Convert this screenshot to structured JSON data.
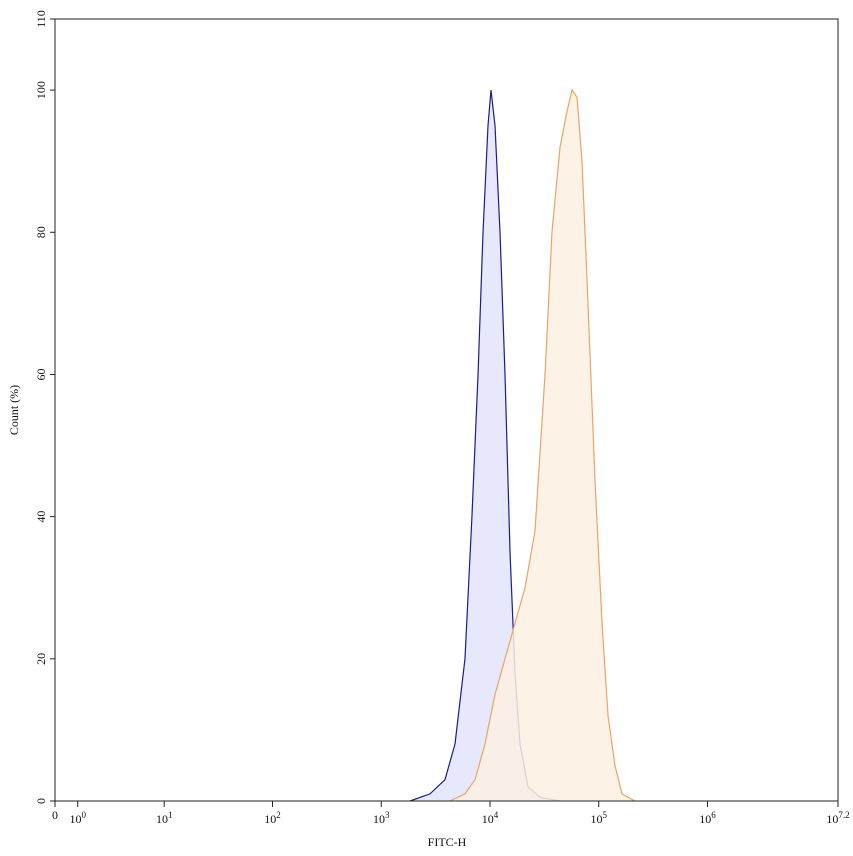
{
  "chart_data": {
    "type": "histogram-overlay",
    "x_label": "FITC-H",
    "y_label": "Count (%)",
    "xscale": "biexponential",
    "xlim": [
      0,
      15848932
    ],
    "xticks": [
      0,
      {
        "value": 1,
        "label": "10",
        "exponent": "0"
      },
      {
        "value": 10,
        "label": "10",
        "exponent": "1"
      },
      {
        "value": 100,
        "label": "10",
        "exponent": "2"
      },
      {
        "value": 1000,
        "label": "10",
        "exponent": "3"
      },
      {
        "value": 10000,
        "label": "10",
        "exponent": "4"
      },
      {
        "value": 100000,
        "label": "10",
        "exponent": "5"
      },
      {
        "value": 1000000,
        "label": "10",
        "exponent": "6"
      },
      {
        "value": 15848932,
        "label": "10",
        "exponent": "7.2"
      }
    ],
    "ylim": [
      0,
      110
    ],
    "yticks": [
      0,
      20,
      40,
      60,
      80,
      100,
      110
    ],
    "series": [
      {
        "color": "#1c1c8a",
        "fill": "#e3e4fb",
        "x": [
          1837,
          2806,
          3855,
          4764,
          5888,
          6823,
          7762,
          8626,
          9586,
          10210,
          11120,
          12360,
          13740,
          15280,
          16980,
          18880,
          22340,
          28820,
          44000
        ],
        "values": [
          0,
          1,
          3,
          8,
          20,
          40,
          60,
          80,
          95,
          100,
          95,
          80,
          60,
          35,
          18,
          8,
          2,
          0.5,
          0
        ]
      },
      {
        "color": "#e9a467",
        "fill": "#fdf0e2",
        "x": [
          4285,
          5888,
          7280,
          8990,
          11120,
          13740,
          16980,
          20990,
          25940,
          32060,
          37150,
          44060,
          51050,
          56770,
          63100,
          70150,
          79620,
          92420,
          107200,
          121700,
          140900,
          163700,
          215400
        ],
        "values": [
          0,
          1,
          3,
          8,
          15,
          20,
          25,
          30,
          38,
          60,
          80,
          92,
          97,
          100,
          99,
          90,
          70,
          45,
          25,
          12,
          5,
          1,
          0
        ]
      }
    ]
  }
}
